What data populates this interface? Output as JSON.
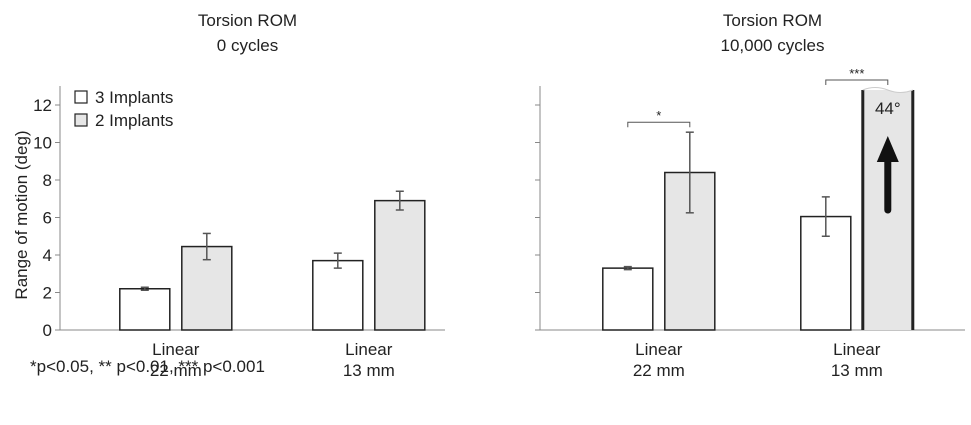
{
  "chart_data": [
    {
      "type": "bar",
      "title": "Torsion ROM",
      "subtitle": "0 cycles",
      "y_label": "Range of motion (deg)",
      "categories": [
        "Linear\n22 mm",
        "Linear\n13 mm"
      ],
      "series": [
        {
          "name": "3 Implants",
          "color": "#ffffff",
          "values": [
            2.2,
            3.7
          ],
          "errors": [
            0.08,
            0.4
          ]
        },
        {
          "name": "2 Implants",
          "color": "#e6e6e6",
          "values": [
            4.45,
            6.9
          ],
          "errors": [
            0.7,
            0.5
          ]
        }
      ],
      "ylim": [
        0,
        12.8
      ],
      "yticks": [
        0,
        2,
        4,
        6,
        8,
        10,
        12
      ],
      "legend": "top-left"
    },
    {
      "type": "bar",
      "title": "Torsion ROM",
      "subtitle": "10,000 cycles",
      "categories": [
        "Linear\n22 mm",
        "Linear\n13 mm"
      ],
      "series": [
        {
          "name": "3 Implants",
          "color": "#ffffff",
          "values": [
            3.3,
            6.05
          ],
          "errors": [
            0.08,
            1.05
          ]
        },
        {
          "name": "2 Implants",
          "color": "#e6e6e6",
          "values": [
            8.4,
            44
          ],
          "errors": [
            2.15,
            null
          ],
          "value_labels": [
            null,
            "44°"
          ]
        }
      ],
      "annotations": [
        "*",
        "***"
      ],
      "ylim": [
        0,
        12.8
      ],
      "yticks": [
        0,
        2,
        4,
        6,
        8,
        10,
        12
      ]
    }
  ],
  "footnote": "*p<0.05,  ** p<0.01,  *** p<0.001"
}
